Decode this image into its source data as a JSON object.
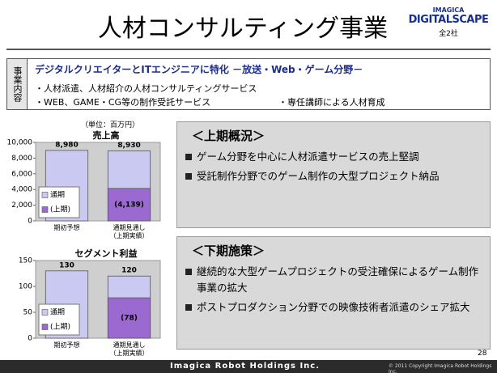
{
  "header": {
    "title": "人材コンサルティング事業",
    "logo_top": "IMAGICA",
    "logo_main": "DIGITALSCAPE",
    "companies": "全2社"
  },
  "business": {
    "label": "事業内容",
    "heading": "デジタルクリエイターとITエンジニアに特化 －放送・Web・ゲーム分野－",
    "items": [
      "・人材派遣、人材紹介の人材コンサルティングサービス",
      "・WEB、GAME・CG等の制作受託サービス",
      "・専任講師による人材育成"
    ]
  },
  "unit": "（単位：百万円）",
  "chart_data": [
    {
      "type": "bar",
      "title": "売上高",
      "categories": [
        "期初予想",
        "通期見通し\n（上期実績）"
      ],
      "series": [
        {
          "name": "通期",
          "color": "#c9c9f2",
          "values": [
            8980,
            8930
          ],
          "value_labels": [
            "8,980",
            "8,930"
          ]
        },
        {
          "name": "(上期)",
          "color": "#9b6ad0",
          "values": [
            null,
            4139
          ],
          "value_labels": [
            null,
            "(4,139)"
          ]
        }
      ],
      "ylim": [
        0,
        10000
      ],
      "yticks": [
        0,
        {
          "value": 2000,
          "label": "2,000"
        },
        {
          "value": 4000,
          "label": "4,000"
        },
        {
          "value": 6000,
          "label": "6,000"
        },
        {
          "value": 8000,
          "label": "8,000"
        },
        {
          "value": 10000,
          "label": "10,000"
        }
      ]
    },
    {
      "type": "bar",
      "title": "セグメント利益",
      "categories": [
        "期初予想",
        "通期見通し\n（上期実績）"
      ],
      "series": [
        {
          "name": "通期",
          "color": "#c9c9f2",
          "values": [
            130,
            120
          ]
        },
        {
          "name": "(上期)",
          "color": "#9b6ad0",
          "values": [
            null,
            78
          ],
          "value_labels": [
            null,
            "(78)"
          ]
        }
      ],
      "ylim": [
        0,
        150
      ],
      "yticks": [
        0,
        50,
        100,
        150
      ]
    }
  ],
  "panels": [
    {
      "heading": "＜上期概況＞",
      "items": [
        "ゲーム分野を中心に人材派遣サービスの売上堅調",
        "受託制作分野でのゲーム制作の大型プロジェクト納品"
      ]
    },
    {
      "heading": "＜下期施策＞",
      "items": [
        "継続的な大型ゲームプロジェクトの受注確保によるゲーム制作事業の拡大",
        "ポストプロダクション分野での映像技術者派遣のシェア拡大"
      ]
    }
  ],
  "footer": {
    "page": "28",
    "company": "Imagica Robot Holdings Inc.",
    "copyright": "© 2011 Copyright Imagica Robot Holdings Inc."
  }
}
